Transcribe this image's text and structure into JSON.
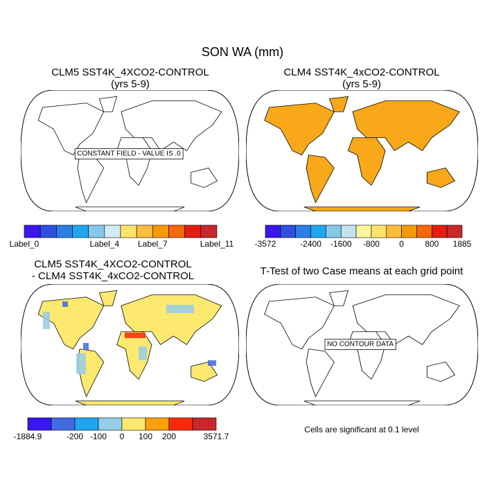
{
  "title": "SON WA (mm)",
  "panels": [
    {
      "title": [
        "CLM5 SST4K_4XCO2-CONTROL",
        "(yrs 5-9)"
      ],
      "message": "CONSTANT FIELD - VALUE IS .0",
      "colorbar": {
        "colors": [
          "#3b16f0",
          "#2f4fe0",
          "#2a7fe8",
          "#1ea6f0",
          "#86c8ea",
          "#d2ebf5",
          "#fde468",
          "#fbbd3c",
          "#f79a08",
          "#f76808",
          "#e61c10",
          "#c8282a"
        ],
        "labels": [
          "Label_0",
          null,
          null,
          null,
          null,
          "Label_4",
          null,
          null,
          "Label_7",
          null,
          null,
          null,
          "Label_11"
        ]
      }
    },
    {
      "title": [
        "CLM4 SST4K_4xCO2-CONTROL",
        "(yrs 5-9)"
      ],
      "colorbar": {
        "colors": [
          "#3b16f0",
          "#2f4fe0",
          "#2a7fe8",
          "#1ea6f0",
          "#86c8ea",
          "#c2e2f0",
          "#fff59a",
          "#fde468",
          "#fbbd3c",
          "#f79a08",
          "#f76808",
          "#e61c10",
          "#c8282a"
        ],
        "labels": [
          "-3572",
          null,
          null,
          "-2400",
          null,
          "-1600",
          null,
          "-800",
          null,
          "0",
          null,
          "800",
          null,
          "1885"
        ]
      }
    },
    {
      "title": [
        "CLM5 SST4K_4XCO2-CONTROL",
        "- CLM4 SST4K_4xCO2-CONTROL"
      ],
      "colorbar": {
        "colors": [
          "#3b16f0",
          "#4169e1",
          "#1ea6f0",
          "#96cce8",
          "#fde870",
          "#f8a010",
          "#f82a0c",
          "#c8282a"
        ],
        "labels": [
          "-1884.9",
          null,
          "-200",
          "-100",
          "0",
          "100",
          "200",
          null,
          "3571.7"
        ]
      }
    },
    {
      "title": [
        "T-Test of two Case means at each grid point"
      ],
      "message": "NO CONTOUR DATA",
      "note": "Cells are significant at 0.1 level"
    }
  ]
}
